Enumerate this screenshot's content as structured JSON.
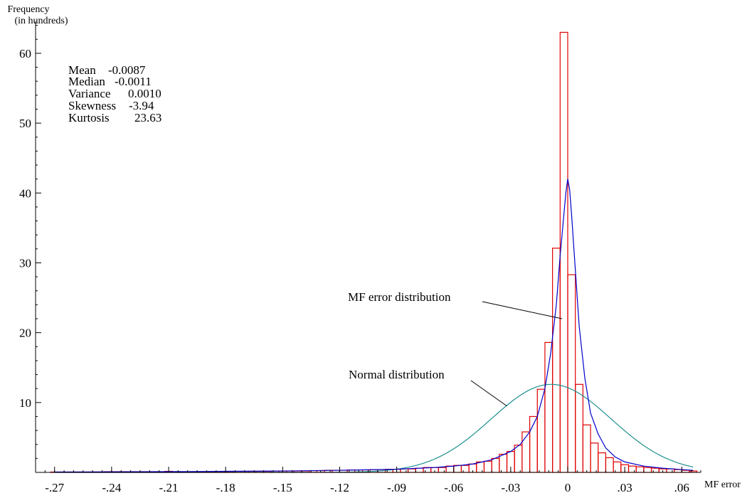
{
  "chart_data": {
    "type": "bar",
    "ylabel": [
      "Frequency",
      "(in hundreds)"
    ],
    "xlabel": "MF error",
    "xlim": [
      -0.28,
      0.07
    ],
    "ylim": [
      0,
      66
    ],
    "x_ticks": [
      -0.27,
      -0.24,
      -0.21,
      -0.18,
      -0.15,
      -0.12,
      -0.09,
      -0.06,
      -0.03,
      0,
      0.03,
      0.06
    ],
    "x_tick_labels": [
      "-.27",
      "-.24",
      "-.21",
      "-.18",
      "-.15",
      "-.12",
      "-.09",
      "-.06",
      "-.03",
      "0",
      ".03",
      ".06"
    ],
    "y_ticks": [
      10,
      20,
      30,
      40,
      50,
      60
    ],
    "y_tick_labels": [
      "10",
      "20",
      "30",
      "40",
      "50",
      "60"
    ],
    "stats": [
      {
        "label": "Mean",
        "value": "-0.0087"
      },
      {
        "label": "Median",
        "value": "-0.0011"
      },
      {
        "label": "Variance",
        "value": "0.0010"
      },
      {
        "label": "Skewness",
        "value": "-3.94"
      },
      {
        "label": "Kurtosis",
        "value": "23.63"
      }
    ],
    "bin_width": 0.004,
    "bins": [
      {
        "x": -0.27,
        "value": 0.05
      },
      {
        "x": -0.266,
        "value": 0.05
      },
      {
        "x": -0.262,
        "value": 0.05
      },
      {
        "x": -0.258,
        "value": 0.05
      },
      {
        "x": -0.254,
        "value": 0.05
      },
      {
        "x": -0.25,
        "value": 0.05
      },
      {
        "x": -0.246,
        "value": 0.05
      },
      {
        "x": -0.242,
        "value": 0.1
      },
      {
        "x": -0.238,
        "value": 0.1
      },
      {
        "x": -0.234,
        "value": 0.1
      },
      {
        "x": -0.23,
        "value": 0.1
      },
      {
        "x": -0.226,
        "value": 0.1
      },
      {
        "x": -0.222,
        "value": 0.1
      },
      {
        "x": -0.218,
        "value": 0.1
      },
      {
        "x": -0.214,
        "value": 0.1
      },
      {
        "x": -0.21,
        "value": 0.15
      },
      {
        "x": -0.206,
        "value": 0.1
      },
      {
        "x": -0.202,
        "value": 0.1
      },
      {
        "x": -0.198,
        "value": 0.1
      },
      {
        "x": -0.194,
        "value": 0.1
      },
      {
        "x": -0.19,
        "value": 0.1
      },
      {
        "x": -0.186,
        "value": 0.1
      },
      {
        "x": -0.182,
        "value": 0.1
      },
      {
        "x": -0.178,
        "value": 0.1
      },
      {
        "x": -0.174,
        "value": 0.15
      },
      {
        "x": -0.17,
        "value": 0.15
      },
      {
        "x": -0.166,
        "value": 0.15
      },
      {
        "x": -0.162,
        "value": 0.15
      },
      {
        "x": -0.158,
        "value": 0.15
      },
      {
        "x": -0.154,
        "value": 0.2
      },
      {
        "x": -0.15,
        "value": 0.2
      },
      {
        "x": -0.146,
        "value": 0.2
      },
      {
        "x": -0.142,
        "value": 0.2
      },
      {
        "x": -0.138,
        "value": 0.2
      },
      {
        "x": -0.134,
        "value": 0.25
      },
      {
        "x": -0.13,
        "value": 0.25
      },
      {
        "x": -0.126,
        "value": 0.3
      },
      {
        "x": -0.122,
        "value": 0.3
      },
      {
        "x": -0.118,
        "value": 0.3
      },
      {
        "x": -0.114,
        "value": 0.35
      },
      {
        "x": -0.11,
        "value": 0.35
      },
      {
        "x": -0.106,
        "value": 0.35
      },
      {
        "x": -0.102,
        "value": 0.4
      },
      {
        "x": -0.098,
        "value": 0.4
      },
      {
        "x": -0.094,
        "value": 0.45
      },
      {
        "x": -0.09,
        "value": 0.45
      },
      {
        "x": -0.086,
        "value": 0.5
      },
      {
        "x": -0.082,
        "value": 0.5
      },
      {
        "x": -0.078,
        "value": 0.6
      },
      {
        "x": -0.074,
        "value": 0.7
      },
      {
        "x": -0.07,
        "value": 0.7
      },
      {
        "x": -0.066,
        "value": 0.7
      },
      {
        "x": -0.062,
        "value": 0.9
      },
      {
        "x": -0.058,
        "value": 1.0
      },
      {
        "x": -0.054,
        "value": 1.0
      },
      {
        "x": -0.05,
        "value": 1.2
      },
      {
        "x": -0.046,
        "value": 1.5
      },
      {
        "x": -0.042,
        "value": 1.6
      },
      {
        "x": -0.038,
        "value": 2.0
      },
      {
        "x": -0.034,
        "value": 2.6
      },
      {
        "x": -0.03,
        "value": 3.0
      },
      {
        "x": -0.026,
        "value": 3.9
      },
      {
        "x": -0.022,
        "value": 5.8
      },
      {
        "x": -0.018,
        "value": 8.0
      },
      {
        "x": -0.014,
        "value": 11.9
      },
      {
        "x": -0.01,
        "value": 18.6
      },
      {
        "x": -0.006,
        "value": 32.1
      },
      {
        "x": -0.002,
        "value": 63.0
      },
      {
        "x": 0.002,
        "value": 28.3
      },
      {
        "x": 0.006,
        "value": 12.6
      },
      {
        "x": 0.01,
        "value": 6.8
      },
      {
        "x": 0.014,
        "value": 4.2
      },
      {
        "x": 0.018,
        "value": 2.8
      },
      {
        "x": 0.022,
        "value": 2.1
      },
      {
        "x": 0.026,
        "value": 1.5
      },
      {
        "x": 0.03,
        "value": 1.1
      },
      {
        "x": 0.034,
        "value": 0.9
      },
      {
        "x": 0.038,
        "value": 0.8
      },
      {
        "x": 0.042,
        "value": 0.7
      },
      {
        "x": 0.046,
        "value": 0.6
      },
      {
        "x": 0.05,
        "value": 0.5
      },
      {
        "x": 0.054,
        "value": 0.5
      },
      {
        "x": 0.058,
        "value": 0.4
      },
      {
        "x": 0.062,
        "value": 0.3
      },
      {
        "x": 0.066,
        "value": 0.2
      }
    ],
    "series": [
      {
        "name": "MF error distribution",
        "type": "line",
        "x": [
          -0.27,
          -0.24,
          -0.21,
          -0.18,
          -0.15,
          -0.12,
          -0.09,
          -0.07,
          -0.06,
          -0.05,
          -0.04,
          -0.03,
          -0.025,
          -0.02,
          -0.016,
          -0.012,
          -0.009,
          -0.006,
          -0.004,
          -0.002,
          -0.001,
          0,
          0.001,
          0.002,
          0.004,
          0.006,
          0.009,
          0.012,
          0.016,
          0.02,
          0.025,
          0.03,
          0.04,
          0.05,
          0.06,
          0.066
        ],
        "y": [
          0.05,
          0.08,
          0.1,
          0.15,
          0.2,
          0.3,
          0.45,
          0.7,
          0.9,
          1.2,
          1.8,
          3.0,
          4.0,
          5.8,
          8.0,
          12.0,
          17.0,
          24.0,
          31.0,
          37.0,
          40.0,
          42.0,
          40.5,
          37.0,
          29.0,
          21.0,
          13.5,
          8.5,
          5.5,
          3.5,
          2.2,
          1.5,
          0.9,
          0.6,
          0.4,
          0.3
        ]
      },
      {
        "name": "Normal distribution",
        "type": "normal",
        "mean": -0.0087,
        "sd": 0.0316,
        "peak": 12.6,
        "x_range": [
          -0.27,
          0.066
        ]
      }
    ],
    "annotations": [
      {
        "text": "MF error distribution",
        "target_x": -0.003,
        "target_y": 22
      },
      {
        "text": "Normal distribution",
        "target_x": -0.032,
        "target_y": 9.5
      }
    ],
    "colors": {
      "bars": "#e00000",
      "mf_curve": "#0000cc",
      "normal_curve": "#1f8f8f",
      "axes": "#000000"
    }
  }
}
